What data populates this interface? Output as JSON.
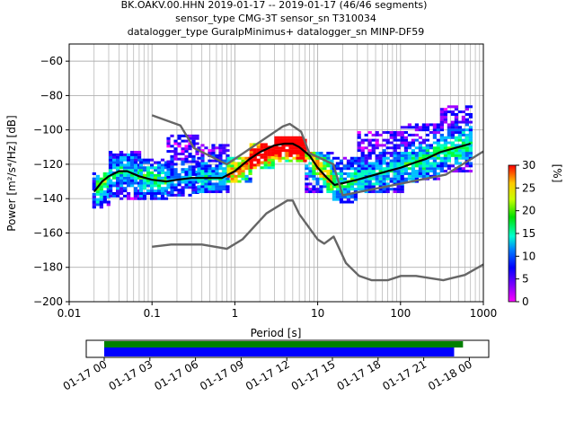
{
  "chart_data": {
    "type": "heatmap",
    "title": [
      "BK.OAKV.00.HHN   2019-01-17 -- 2019-01-17  (46/46 segments)",
      "sensor_type CMG-3T sensor_sn T310034",
      "datalogger_type GuralpMinimus+ datalogger_sn MINP-DF59"
    ],
    "xlabel": "Period [s]",
    "ylabel": "Power [m²/s⁴/Hz] [dB]",
    "x_scale": "log",
    "xlim": [
      0.01,
      1000
    ],
    "ylim": [
      -200,
      -50
    ],
    "x_tick_labels": [
      {
        "value": 0.01,
        "label": "0.01"
      },
      {
        "value": 0.1,
        "label": "0.1"
      },
      {
        "value": 1,
        "label": "1"
      },
      {
        "value": 10,
        "label": "10"
      },
      {
        "value": 100,
        "label": "100"
      },
      {
        "value": 1000,
        "label": "1000"
      }
    ],
    "y_ticks": [
      -200,
      -180,
      -160,
      -140,
      -120,
      -100,
      -80,
      -60
    ],
    "grid": true,
    "colorbar": {
      "label": "[%]",
      "range": [
        0,
        30
      ],
      "ticks": [
        0,
        5,
        10,
        15,
        20,
        25,
        30
      ]
    },
    "series": [
      {
        "kind": "mode",
        "color": "#000000",
        "x": [
          0.02,
          0.025,
          0.03,
          0.04,
          0.05,
          0.07,
          0.1,
          0.15,
          0.2,
          0.3,
          0.5,
          0.7,
          1,
          1.5,
          2,
          3,
          4,
          5,
          6,
          8,
          10,
          13,
          16,
          20,
          30,
          50,
          70,
          100,
          150,
          200,
          300,
          500,
          700
        ],
        "y": [
          -136,
          -130,
          -127,
          -124,
          -124,
          -127,
          -129,
          -130,
          -129,
          -128,
          -128,
          -128,
          -124,
          -117,
          -113,
          -109,
          -108,
          -108,
          -110,
          -115,
          -122,
          -128,
          -132,
          -131,
          -129,
          -126,
          -124,
          -122,
          -119,
          -117,
          -113,
          -110,
          -108
        ]
      },
      {
        "kind": "noise_model_high",
        "color": "#666666",
        "x": [
          0.1,
          0.22,
          0.32,
          0.8,
          3.8,
          4.6,
          6.3,
          7.9,
          15.4,
          20,
          354.8,
          1000
        ],
        "y": [
          -91.5,
          -97.4,
          -110.5,
          -120,
          -98,
          -96.5,
          -101,
          -113.5,
          -120,
          -138,
          -126,
          -112.5
        ]
      },
      {
        "kind": "noise_model_low",
        "color": "#666666",
        "x": [
          0.1,
          0.17,
          0.4,
          0.8,
          1.24,
          2.4,
          4.3,
          5,
          6,
          10,
          12,
          15.6,
          21.9,
          31.6,
          45,
          70,
          101,
          154,
          328,
          600,
          1000
        ],
        "y": [
          -168,
          -166.7,
          -166.7,
          -169.2,
          -163.7,
          -148.6,
          -141.1,
          -141.1,
          -149,
          -163.8,
          -166.2,
          -162.1,
          -177.5,
          -185,
          -187.5,
          -187.5,
          -185,
          -185,
          -187.5,
          -184.4,
          -178.3
        ]
      }
    ],
    "density_stripes": [
      {
        "x": [
          0.019,
          0.03
        ],
        "y_min": -145,
        "y_max": -125,
        "intensity": 0.35
      },
      {
        "x": [
          0.03,
          0.07
        ],
        "y_min": -140,
        "y_max": -112,
        "intensity": 0.25
      },
      {
        "x": [
          0.07,
          0.15
        ],
        "y_min": -140,
        "y_max": -117,
        "intensity": 0.3
      },
      {
        "x": [
          0.15,
          0.35
        ],
        "y_min": -138,
        "y_max": -103,
        "intensity": 0.2
      },
      {
        "x": [
          0.35,
          0.8
        ],
        "y_min": -136,
        "y_max": -108,
        "intensity": 0.25
      },
      {
        "x": [
          0.8,
          1.5
        ],
        "y_min": -130,
        "y_max": -115,
        "intensity": 0.5
      },
      {
        "x": [
          1.5,
          3
        ],
        "y_min": -122,
        "y_max": -108,
        "intensity": 0.7
      },
      {
        "x": [
          3,
          7
        ],
        "y_min": -118,
        "y_max": -104,
        "intensity": 0.8
      },
      {
        "x": [
          7,
          15
        ],
        "y_min": -136,
        "y_max": -112,
        "intensity": 0.45
      },
      {
        "x": [
          15,
          30
        ],
        "y_min": -142,
        "y_max": -116,
        "intensity": 0.3
      },
      {
        "x": [
          30,
          100
        ],
        "y_min": -136,
        "y_max": -100,
        "intensity": 0.25
      },
      {
        "x": [
          100,
          300
        ],
        "y_min": -130,
        "y_max": -96,
        "intensity": 0.3
      },
      {
        "x": [
          300,
          700
        ],
        "y_min": -124,
        "y_max": -85,
        "intensity": 0.3
      }
    ],
    "time_coverage": {
      "tick_labels": [
        "01-17 00",
        "01-17 03",
        "01-17 06",
        "01-17 09",
        "01-17 12",
        "01-17 15",
        "01-17 18",
        "01-17 21",
        "01-18 00"
      ],
      "data_available": {
        "start": "01-17 00:00",
        "end": "01-17 23:35",
        "color": "#008000"
      },
      "processed": {
        "start": "01-17 00:00",
        "end": "01-17 23:00",
        "color": "#0000ff"
      }
    }
  }
}
